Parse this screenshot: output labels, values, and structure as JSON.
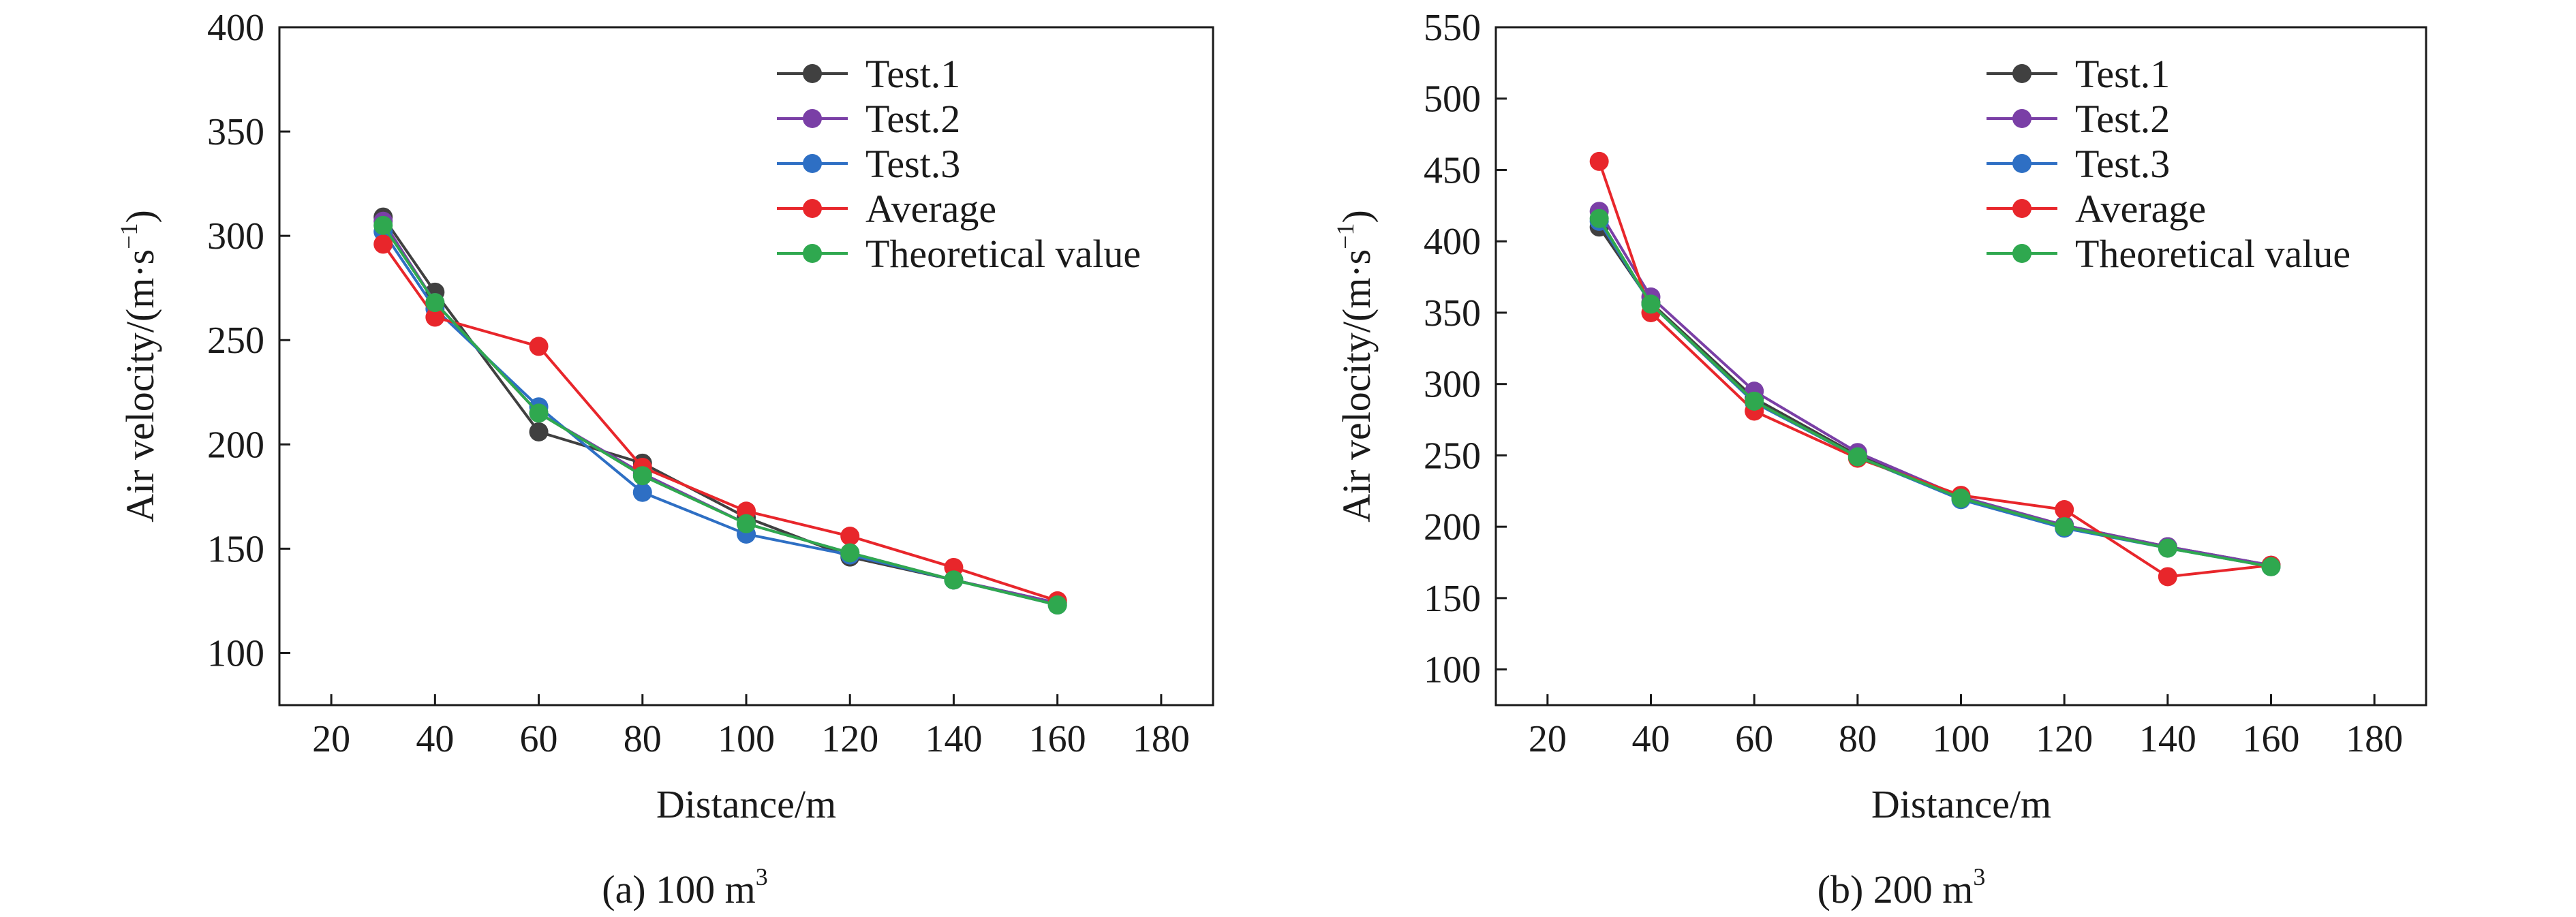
{
  "chart_data": [
    {
      "type": "line",
      "caption": "(a) 100 m",
      "caption_sup": "3",
      "xlabel": "Distance/m",
      "ylabel": "Air velocity/(m·s",
      "ylabel_sup": "−1",
      "ylabel_end": ")",
      "xlim": [
        10,
        190
      ],
      "ylim": [
        75,
        400
      ],
      "xticks": [
        20,
        40,
        60,
        80,
        100,
        120,
        140,
        160,
        180
      ],
      "yticks": [
        100,
        150,
        200,
        250,
        300,
        350,
        400
      ],
      "legend_position": "top-right",
      "x": [
        30,
        40,
        60,
        80,
        100,
        120,
        140,
        160
      ],
      "series": [
        {
          "name": "Test.1",
          "color": "#404040",
          "values": [
            309,
            273,
            206,
            191,
            165,
            146,
            135,
            124
          ]
        },
        {
          "name": "Test.2",
          "color": "#7a3fa6",
          "values": [
            307,
            268,
            215,
            186,
            162,
            148,
            135,
            124
          ]
        },
        {
          "name": "Test.3",
          "color": "#2e6fc4",
          "values": [
            302,
            265,
            218,
            177,
            157,
            147,
            135,
            123
          ]
        },
        {
          "name": "Average",
          "color": "#e8262b",
          "values": [
            296,
            261,
            247,
            189,
            168,
            156,
            141,
            125
          ]
        },
        {
          "name": "Theoretical value",
          "color": "#2fa84f",
          "values": [
            305,
            268,
            215,
            185,
            162,
            148,
            135,
            123
          ]
        }
      ]
    },
    {
      "type": "line",
      "caption": "(b) 200 m",
      "caption_sup": "3",
      "xlabel": "Distance/m",
      "ylabel": "Air velocity/(m·s",
      "ylabel_sup": "−1",
      "ylabel_end": ")",
      "xlim": [
        10,
        190
      ],
      "ylim": [
        75,
        550
      ],
      "xticks": [
        20,
        40,
        60,
        80,
        100,
        120,
        140,
        160,
        180
      ],
      "yticks": [
        100,
        150,
        200,
        250,
        300,
        350,
        400,
        450,
        500,
        550
      ],
      "legend_position": "top-right",
      "x": [
        30,
        40,
        60,
        80,
        100,
        120,
        140,
        160
      ],
      "series": [
        {
          "name": "Test.1",
          "color": "#404040",
          "values": [
            410,
            357,
            290,
            250,
            220,
            201,
            186,
            173
          ]
        },
        {
          "name": "Test.2",
          "color": "#7a3fa6",
          "values": [
            421,
            361,
            295,
            252,
            221,
            201,
            186,
            173
          ]
        },
        {
          "name": "Test.3",
          "color": "#2e6fc4",
          "values": [
            414,
            356,
            287,
            249,
            219,
            199,
            185,
            172
          ]
        },
        {
          "name": "Average",
          "color": "#e8262b",
          "values": [
            456,
            350,
            281,
            248,
            222,
            212,
            165,
            173
          ]
        },
        {
          "name": "Theoretical value",
          "color": "#2fa84f",
          "values": [
            416,
            356,
            288,
            249,
            220,
            200,
            185,
            172
          ]
        }
      ]
    }
  ]
}
